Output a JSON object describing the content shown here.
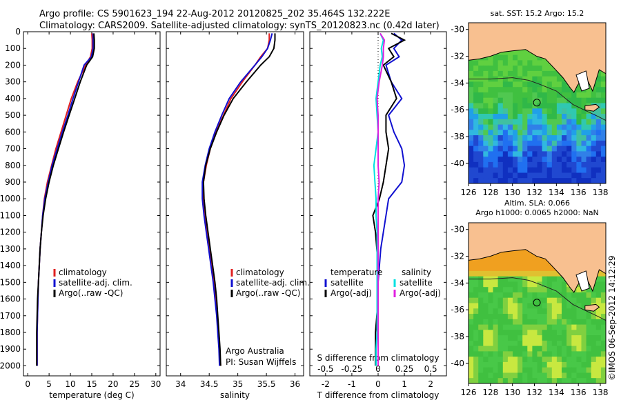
{
  "header": {
    "line1": "Argo profile: CS 5901623_194 22-Aug-2012 20120825_202 35.464S 132.222E",
    "line2": "Climatology: CARS2009. Satellite-adjusted climatology: synTS_20120823.nc (0.42d later)"
  },
  "credits": {
    "line1": "Argo Australia",
    "line2": "PI: Susan Wijffels",
    "watermark": "©IMOS 06-Sep-2012 14:12:29"
  },
  "colors": {
    "climatology": "#e02020",
    "satellite": "#1010d0",
    "argo": "#000000",
    "sal_satellite": "#00e0e0",
    "sal_argo": "#e020e0",
    "land": "#f8c090"
  },
  "chart_data": [
    {
      "type": "line",
      "xlabel": "temperature (deg C)",
      "ylabel": "",
      "xlim": [
        -1,
        31
      ],
      "ylim": [
        0,
        2060
      ],
      "xticks": [
        0,
        5,
        10,
        15,
        20,
        25,
        30
      ],
      "yticks": [
        0,
        100,
        200,
        300,
        400,
        500,
        600,
        700,
        800,
        900,
        1000,
        1100,
        1200,
        1300,
        1400,
        1500,
        1600,
        1700,
        1800,
        1900,
        2000
      ],
      "legend": [
        "climatology",
        "satellite-adj. clim.",
        "Argo(..raw -QC)"
      ],
      "legend_position": "lower-center",
      "depth": [
        10,
        50,
        100,
        150,
        200,
        300,
        400,
        500,
        600,
        700,
        800,
        900,
        1000,
        1100,
        1200,
        1300,
        1400,
        1500,
        1600,
        1700,
        1800,
        1900,
        2000
      ],
      "series": [
        {
          "name": "climatology",
          "color": "#e02020",
          "values": [
            15.0,
            15.1,
            15.1,
            14.7,
            13.6,
            11.7,
            10.2,
            9.0,
            7.8,
            6.6,
            5.6,
            4.6,
            3.9,
            3.5,
            3.2,
            2.9,
            2.7,
            2.5,
            2.4,
            2.3,
            2.2,
            2.2,
            2.2
          ]
        },
        {
          "name": "satellite-adj. clim.",
          "color": "#1010d0",
          "values": [
            15.3,
            15.3,
            15.3,
            14.9,
            13.2,
            11.9,
            10.6,
            9.4,
            8.1,
            6.9,
            5.7,
            4.8,
            4.0,
            3.5,
            3.2,
            2.9,
            2.7,
            2.5,
            2.4,
            2.3,
            2.2,
            2.2,
            2.2
          ]
        },
        {
          "name": "Argo(..raw -QC)",
          "color": "#000000",
          "values": [
            15.5,
            15.6,
            15.6,
            15.2,
            13.8,
            12.3,
            11.0,
            9.7,
            8.4,
            7.2,
            6.0,
            5.0,
            4.2,
            3.6,
            3.2,
            2.9,
            2.7,
            2.5,
            2.3,
            2.2,
            2.1,
            2.1,
            2.1
          ]
        }
      ]
    },
    {
      "type": "line",
      "xlabel": "salinity",
      "xlim": [
        33.75,
        36.15
      ],
      "ylim": [
        0,
        2060
      ],
      "xticks": [
        34,
        34.5,
        35,
        35.5,
        36
      ],
      "legend": [
        "climatology",
        "satellite-adj. clim.",
        "Argo(..raw -QC)"
      ],
      "legend_position": "lower-right",
      "depth": [
        10,
        50,
        100,
        150,
        200,
        300,
        400,
        500,
        600,
        700,
        800,
        900,
        1000,
        1100,
        1200,
        1300,
        1400,
        1500,
        1600,
        1700,
        1800,
        1900,
        2000
      ],
      "series": [
        {
          "name": "climatology",
          "color": "#e02020",
          "values": [
            35.55,
            35.55,
            35.52,
            35.4,
            35.3,
            35.08,
            34.88,
            34.75,
            34.62,
            34.52,
            34.45,
            34.4,
            34.4,
            34.43,
            34.47,
            34.51,
            34.55,
            34.58,
            34.61,
            34.64,
            34.66,
            34.68,
            34.7
          ]
        },
        {
          "name": "satellite-adj. clim.",
          "color": "#1010d0",
          "values": [
            35.6,
            35.57,
            35.52,
            35.42,
            35.3,
            35.05,
            34.85,
            34.72,
            34.6,
            34.5,
            34.43,
            34.38,
            34.38,
            34.41,
            34.45,
            34.49,
            34.53,
            34.57,
            34.6,
            34.63,
            34.65,
            34.67,
            34.68
          ]
        },
        {
          "name": "Argo(..raw -QC)",
          "color": "#000000",
          "values": [
            35.65,
            35.65,
            35.63,
            35.55,
            35.4,
            35.15,
            34.92,
            34.76,
            34.63,
            34.52,
            34.44,
            34.4,
            34.41,
            34.44,
            34.48,
            34.52,
            34.56,
            34.6,
            34.63,
            34.65,
            34.67,
            34.69,
            34.7
          ]
        }
      ]
    },
    {
      "type": "line",
      "xlabel": "T difference from climatology",
      "top_xlabel": "S difference from climatology",
      "xlim": [
        -2.6,
        2.6
      ],
      "top_xlim": [
        -0.65,
        0.65
      ],
      "ylim": [
        0,
        2060
      ],
      "xticks": [
        -2,
        -1,
        0,
        1,
        2
      ],
      "top_xticks": [
        -0.5,
        -0.25,
        0,
        0.25,
        0.5
      ],
      "legend_groups": [
        {
          "title": "temperature",
          "entries": [
            "satellite",
            "Argo(-adj)"
          ]
        },
        {
          "title": "salinity",
          "entries": [
            "satellite",
            "Argo(-adj)"
          ]
        }
      ],
      "depth": [
        10,
        50,
        100,
        150,
        200,
        300,
        400,
        500,
        600,
        700,
        800,
        900,
        1000,
        1100,
        1200,
        1300,
        1400,
        1500,
        1600,
        1700,
        1800,
        1900,
        2000
      ],
      "series": [
        {
          "name": "temperature satellite",
          "color": "#1010d0",
          "axis": "T",
          "values": [
            0.6,
            0.9,
            0.6,
            0.8,
            0.3,
            0.5,
            0.9,
            0.4,
            0.6,
            0.9,
            1.0,
            0.9,
            0.4,
            0.3,
            0.2,
            0.1,
            0.05,
            0.0,
            0.0,
            0.0,
            0.0,
            0.0,
            0.0
          ]
        },
        {
          "name": "temperature Argo(-adj)",
          "color": "#000000",
          "axis": "T",
          "values": [
            0.5,
            1.0,
            0.4,
            0.6,
            0.2,
            0.5,
            0.7,
            0.3,
            0.3,
            0.4,
            0.3,
            0.2,
            0.05,
            -0.2,
            -0.1,
            -0.05,
            0.0,
            0.0,
            0.0,
            -0.05,
            -0.1,
            -0.1,
            -0.1
          ]
        },
        {
          "name": "salinity satellite",
          "color": "#00e0e0",
          "axis": "S",
          "values": [
            0.02,
            0.05,
            0.03,
            0.04,
            0.02,
            0.0,
            -0.02,
            -0.01,
            0.0,
            -0.02,
            -0.04,
            -0.03,
            -0.02,
            -0.02,
            -0.01,
            -0.01,
            -0.01,
            -0.01,
            -0.01,
            -0.01,
            -0.01,
            -0.02,
            -0.02
          ]
        },
        {
          "name": "salinity Argo(-adj)",
          "color": "#e020e0",
          "axis": "S",
          "values": [
            0.02,
            0.06,
            0.05,
            0.05,
            0.04,
            0.01,
            -0.01,
            0.0,
            0.0,
            0.0,
            0.0,
            0.01,
            0.0,
            0.0,
            0.0,
            0.0,
            0.0,
            0.0,
            0.0,
            0.0,
            0.0,
            0.0,
            0.0
          ]
        }
      ]
    },
    {
      "type": "heatmap",
      "title": "sat. SST: 15.2 Argo: 15.2",
      "caption_lines": [
        "Altim. SLA: 0.066",
        "Argo h1000: 0.0065 h2000: NaN"
      ],
      "xlim": [
        126,
        138.5
      ],
      "ylim": [
        -41.5,
        -29.5
      ],
      "xticks": [
        126,
        128,
        130,
        132,
        134,
        136,
        138
      ],
      "yticks": [
        -30,
        -32,
        -34,
        -36,
        -38,
        -40
      ],
      "marker": {
        "lon": 132.222,
        "lat": -35.464
      }
    },
    {
      "type": "heatmap",
      "title": "",
      "xlim": [
        126,
        138.5
      ],
      "ylim": [
        -41.5,
        -29.5
      ],
      "xticks": [
        126,
        128,
        130,
        132,
        134,
        136,
        138
      ],
      "yticks": [
        -30,
        -32,
        -34,
        -36,
        -38,
        -40
      ],
      "marker": {
        "lon": 132.222,
        "lat": -35.464
      }
    }
  ]
}
